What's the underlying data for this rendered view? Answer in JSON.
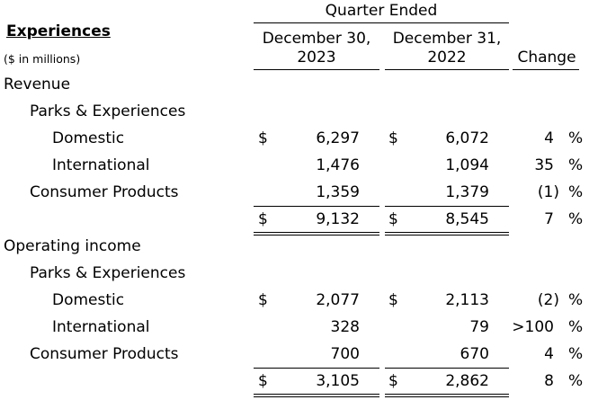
{
  "header": {
    "section_title": "Experiences",
    "units": "($ in millions)",
    "group_heading": "Quarter Ended",
    "col1": [
      "December 30,",
      "2023"
    ],
    "col2": [
      "December 31,",
      "2022"
    ],
    "col3": "Change"
  },
  "revenue": {
    "heading": "Revenue",
    "sub_heading": "Parks & Experiences",
    "rows": [
      {
        "label": "Domestic",
        "cur1": "$",
        "v1": "6,297",
        "cur2": "$",
        "v2": "6,072",
        "change": "4",
        "pct": "%"
      },
      {
        "label": "International",
        "cur1": "",
        "v1": "1,476",
        "cur2": "",
        "v2": "1,094",
        "change": "35",
        "pct": "%"
      },
      {
        "label": "Consumer Products",
        "cur1": "",
        "v1": "1,359",
        "cur2": "",
        "v2": "1,379",
        "change": "(1)",
        "pct": "%"
      }
    ],
    "total": {
      "cur1": "$",
      "v1": "9,132",
      "cur2": "$",
      "v2": "8,545",
      "change": "7",
      "pct": "%"
    }
  },
  "operating_income": {
    "heading": "Operating income",
    "sub_heading": "Parks & Experiences",
    "rows": [
      {
        "label": "Domestic",
        "cur1": "$",
        "v1": "2,077",
        "cur2": "$",
        "v2": "2,113",
        "change": "(2)",
        "pct": "%"
      },
      {
        "label": "International",
        "cur1": "",
        "v1": "328",
        "cur2": "",
        "v2": "79",
        "change": ">100",
        "pct": "%"
      },
      {
        "label": "Consumer Products",
        "cur1": "",
        "v1": "700",
        "cur2": "",
        "v2": "670",
        "change": "4",
        "pct": "%"
      }
    ],
    "total": {
      "cur1": "$",
      "v1": "3,105",
      "cur2": "$",
      "v2": "2,862",
      "change": "8",
      "pct": "%"
    }
  }
}
